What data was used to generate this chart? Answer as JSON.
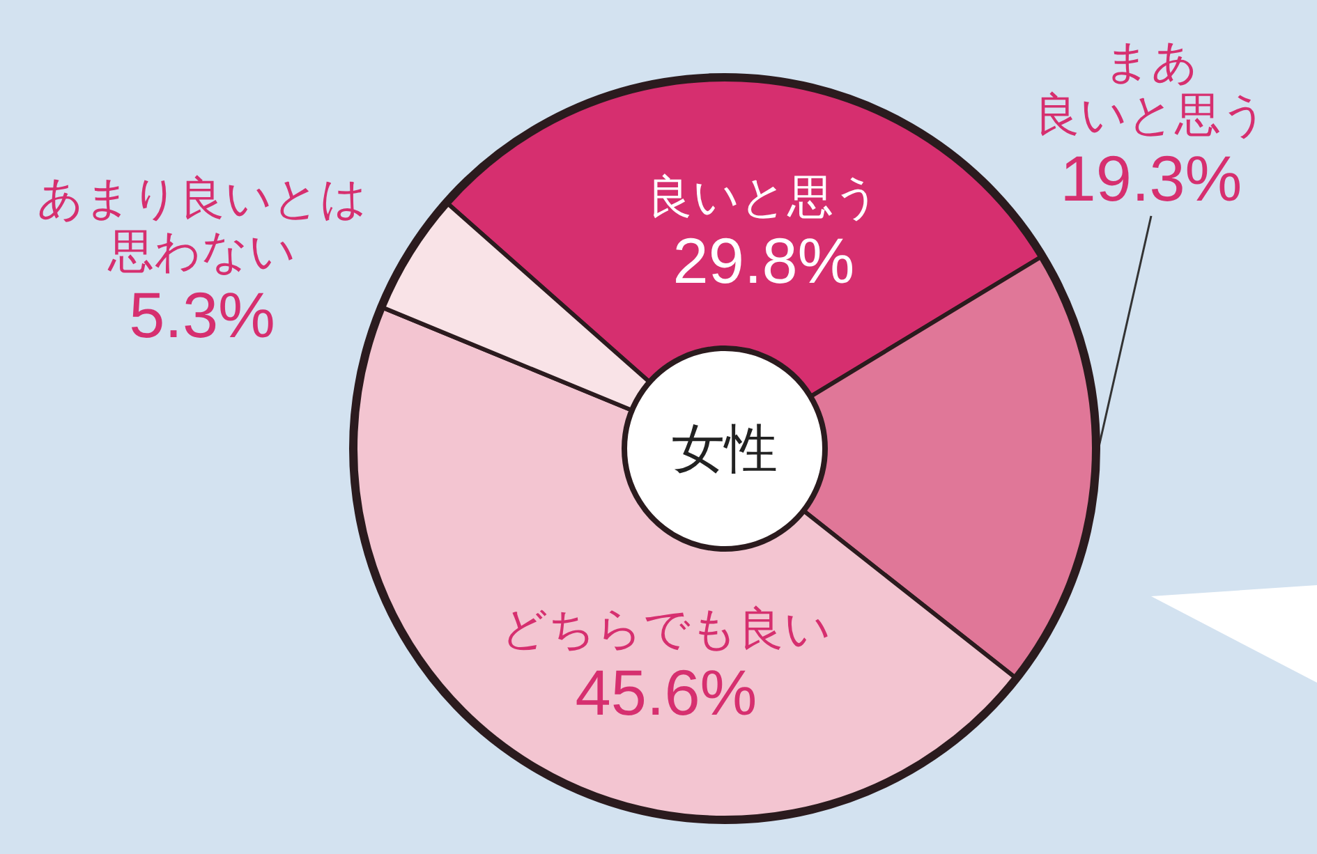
{
  "chart_data": {
    "type": "donut",
    "categories": [
      "良いと思う",
      "まあ良いと思う",
      "どちらでも良い",
      "あまり良いとは思わない"
    ],
    "values": [
      29.8,
      19.3,
      45.6,
      5.3
    ],
    "colors": [
      "#d62f6f",
      "#e07798",
      "#f3c5d1",
      "#f9e3e7"
    ],
    "value_labels": [
      "29.8%",
      "19.3%",
      "45.6%",
      "5.3%"
    ],
    "annotations": [
      "女性"
    ],
    "legend": false
  }
}
